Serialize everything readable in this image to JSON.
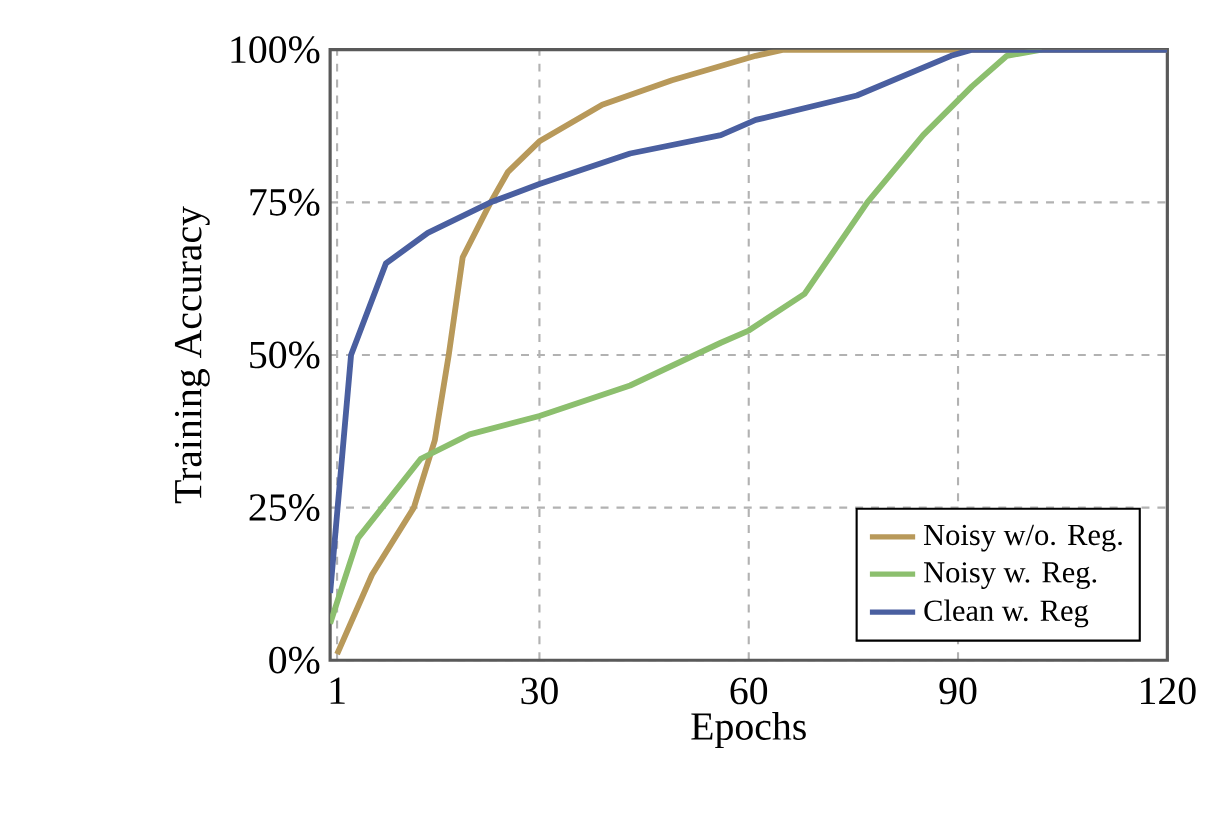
{
  "chart_data": {
    "type": "line",
    "xlabel": "Epochs",
    "ylabel": "Training Accuracy",
    "xlim": [
      0,
      120
    ],
    "xticks": [
      1,
      30,
      60,
      90,
      120
    ],
    "ylim": [
      0,
      100
    ],
    "yticks": [
      {
        "value": 0,
        "label": "0%"
      },
      {
        "value": 25,
        "label": "25%"
      },
      {
        "value": 50,
        "label": "50%"
      },
      {
        "value": 75,
        "label": "75%"
      },
      {
        "value": 100,
        "label": "100%"
      }
    ],
    "grid": true,
    "legend": "bottom right",
    "line_style": "solid",
    "series": [
      {
        "name": "Noisy w/o. Reg.",
        "color": "#b8995a",
        "x": [
          1,
          6,
          12,
          15,
          17,
          19,
          23,
          25.5,
          30,
          39,
          49,
          61,
          65,
          120
        ],
        "values": [
          1,
          14,
          25,
          36,
          50,
          66,
          75,
          80,
          85,
          91,
          95,
          99,
          100,
          100
        ]
      },
      {
        "name": "Noisy w. Reg.",
        "color": "#8cbf6e",
        "x": [
          0,
          4,
          13,
          20,
          30,
          43,
          56,
          60,
          68,
          77,
          85,
          92,
          97,
          102
        ],
        "values": [
          6,
          20,
          33,
          37,
          40,
          45,
          52,
          54,
          60,
          75,
          86,
          94,
          99,
          100
        ]
      },
      {
        "name": "Clean w. Reg",
        "color": "#4a5fa0",
        "x": [
          0,
          3,
          8,
          14,
          23,
          30,
          43,
          56,
          61,
          75.5,
          89,
          92,
          120
        ],
        "values": [
          11,
          50,
          65,
          70,
          75,
          78,
          83,
          86,
          88.5,
          92.5,
          99,
          100,
          100
        ]
      }
    ]
  }
}
